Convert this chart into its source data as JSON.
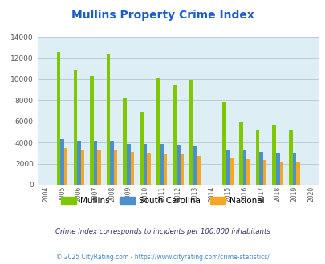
{
  "title": "Mullins Property Crime Index",
  "years": [
    2004,
    2005,
    2006,
    2007,
    2008,
    2009,
    2010,
    2011,
    2012,
    2013,
    2014,
    2015,
    2016,
    2017,
    2018,
    2019,
    2020
  ],
  "mullins": [
    0,
    12600,
    10900,
    10300,
    12450,
    8200,
    6900,
    10100,
    9500,
    9900,
    0,
    7900,
    6000,
    5250,
    5700,
    5250,
    0
  ],
  "south_carolina": [
    0,
    4300,
    4200,
    4200,
    4200,
    3900,
    3900,
    3900,
    3800,
    3600,
    0,
    3350,
    3300,
    3100,
    3000,
    3000,
    0
  ],
  "national": [
    0,
    3450,
    3350,
    3250,
    3300,
    3100,
    3000,
    2900,
    2900,
    2750,
    0,
    2550,
    2450,
    2350,
    2150,
    2100,
    0
  ],
  "mullins_color": "#7dc800",
  "sc_color": "#4d8fcc",
  "national_color": "#f5a623",
  "bg_color": "#ddeef5",
  "ylim": [
    0,
    14000
  ],
  "yticks": [
    0,
    2000,
    4000,
    6000,
    8000,
    10000,
    12000,
    14000
  ],
  "title_color": "#1a5cc8",
  "subtitle": "Crime Index corresponds to incidents per 100,000 inhabitants",
  "footer": "© 2025 CityRating.com - https://www.cityrating.com/crime-statistics/",
  "subtitle_color": "#333366",
  "footer_color": "#4488bb",
  "legend_labels": [
    "Mullins",
    "South Carolina",
    "National"
  ],
  "bar_width": 0.22
}
